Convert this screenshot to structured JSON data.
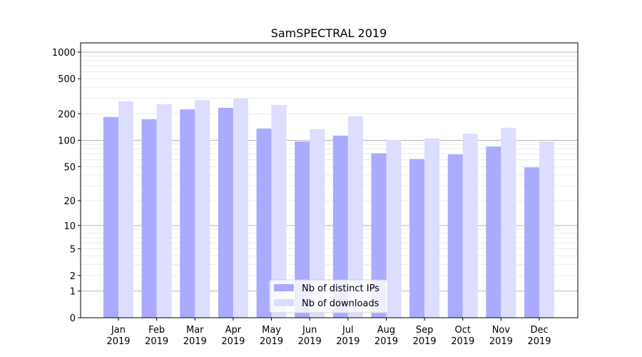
{
  "chart_data": {
    "type": "bar",
    "title": "SamSPECTRAL 2019",
    "xlabel": "",
    "ylabel": "",
    "y_scale": "log(1+y)",
    "ylim": [
      0,
      1273
    ],
    "y_ticks": [
      0,
      1,
      2,
      5,
      10,
      20,
      50,
      100,
      200,
      500,
      1000
    ],
    "grid": true,
    "legend_position": "bottom-center",
    "categories": [
      "Jan\n2019",
      "Feb\n2019",
      "Mar\n2019",
      "Apr\n2019",
      "May\n2019",
      "Jun\n2019",
      "Jul\n2019",
      "Aug\n2019",
      "Sep\n2019",
      "Oct\n2019",
      "Nov\n2019",
      "Dec\n2019"
    ],
    "series": [
      {
        "name": "Nb of distinct IPs",
        "color": "#aaaaff",
        "values": [
          184,
          174,
          225,
          234,
          136,
          97,
          113,
          71,
          61,
          69,
          85,
          49
        ]
      },
      {
        "name": "Nb of downloads",
        "color": "#ddddff",
        "values": [
          277,
          257,
          287,
          298,
          252,
          134,
          187,
          101,
          105,
          119,
          139,
          97
        ]
      }
    ]
  }
}
